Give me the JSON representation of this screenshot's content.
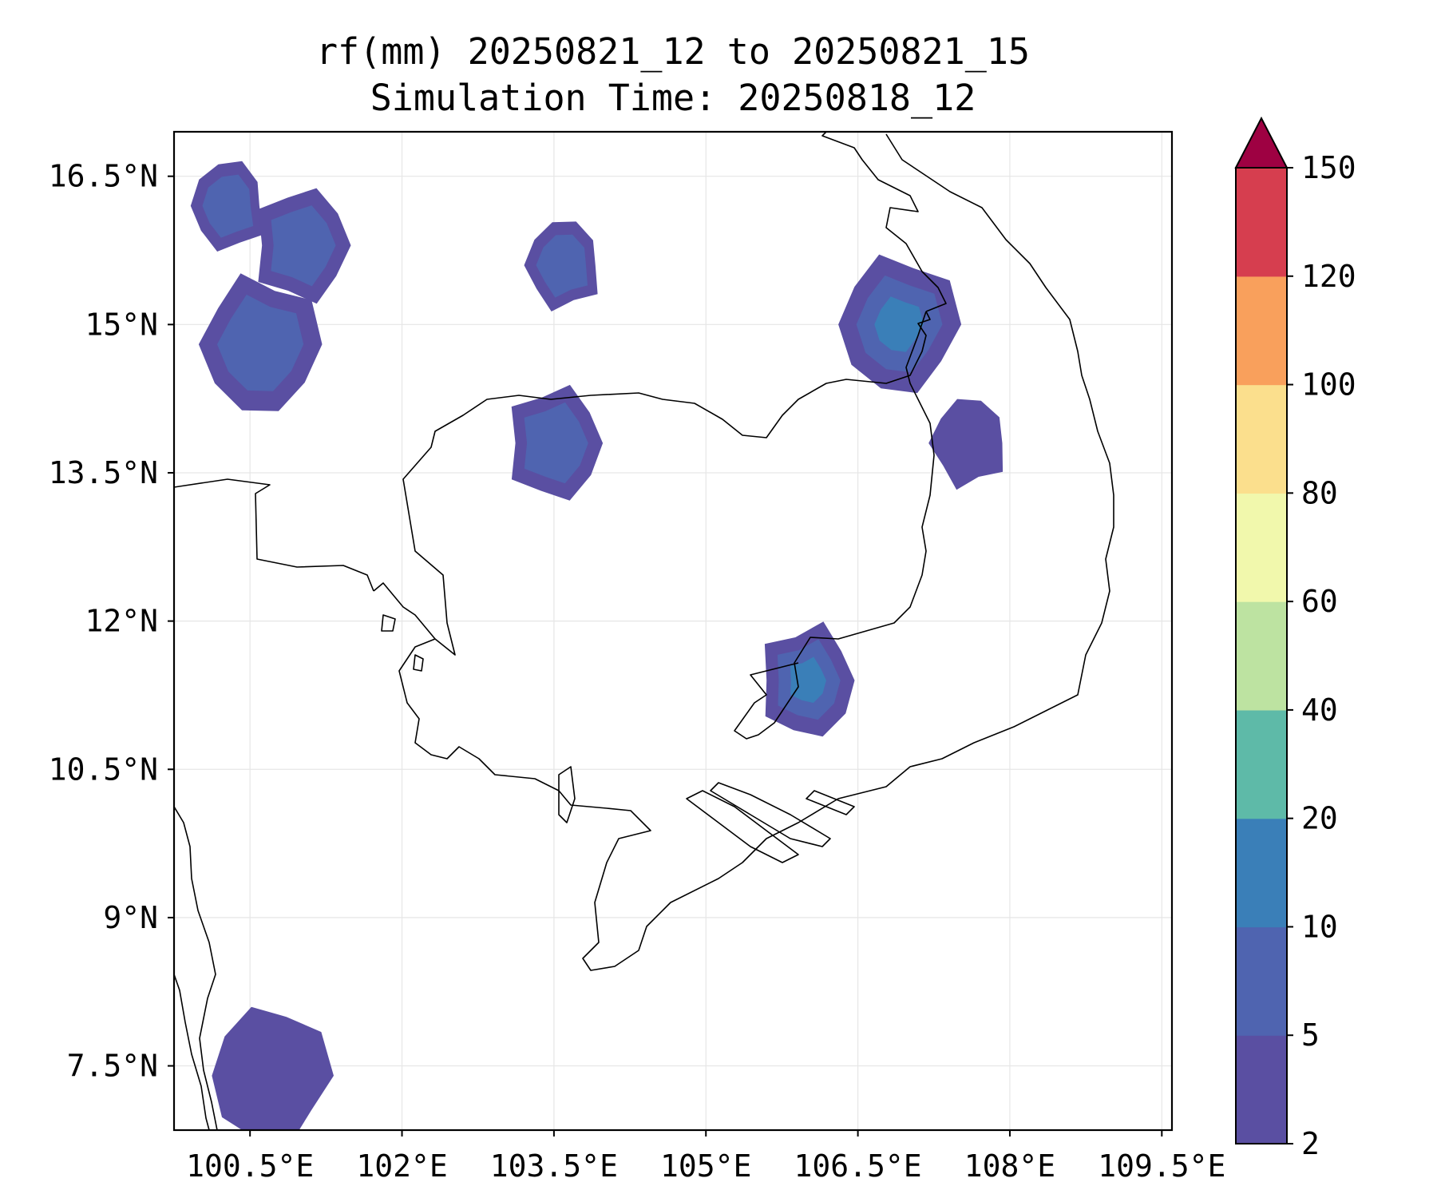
{
  "title": {
    "line1": "rf(mm) 20250821_12 to 20250821_15",
    "line2": "Simulation Time: 20250818_12"
  },
  "map": {
    "lon_range": [
      99.75,
      109.6
    ],
    "lat_range": [
      6.85,
      16.95
    ],
    "x_ticks": [
      "100.5°E",
      "102°E",
      "103.5°E",
      "105°E",
      "106.5°E",
      "108°E",
      "109.5°E"
    ],
    "x_tick_values": [
      100.5,
      102,
      103.5,
      105,
      106.5,
      108,
      109.5
    ],
    "y_ticks": [
      "16.5°N",
      "15°N",
      "13.5°N",
      "12°N",
      "10.5°N",
      "9°N",
      "7.5°N"
    ],
    "y_tick_values": [
      16.5,
      15,
      13.5,
      12,
      10.5,
      9,
      7.5
    ],
    "grid": true,
    "coastline_color": "#000000"
  },
  "colorbar": {
    "levels": [
      "2",
      "5",
      "10",
      "20",
      "40",
      "60",
      "80",
      "100",
      "120",
      "150"
    ],
    "colors": [
      "#5a4fa2",
      "#4f64b0",
      "#3a7fb8",
      "#5ebaa8",
      "#bde3a1",
      "#f1f8ac",
      "#fbdf8d",
      "#f9a05c",
      "#d63e4f",
      "#9e0142"
    ],
    "extend": "max"
  },
  "chart_data": {
    "type": "heatmap",
    "title": "rf(mm) 20250821_12 to 20250821_15",
    "subtitle": "Simulation Time: 20250818_12",
    "xlabel": "",
    "ylabel": "",
    "xlim": [
      99.75,
      109.6
    ],
    "ylim": [
      6.85,
      16.95
    ],
    "color_levels": [
      2,
      5,
      10,
      20,
      40,
      60,
      80,
      100,
      120,
      150
    ],
    "rain_areas": [
      {
        "lon": 100.3,
        "lat": 16.2,
        "max_level": 10
      },
      {
        "lon": 101.0,
        "lat": 15.8,
        "max_level": 10
      },
      {
        "lon": 100.6,
        "lat": 14.8,
        "max_level": 10
      },
      {
        "lon": 103.6,
        "lat": 15.6,
        "max_level": 10
      },
      {
        "lon": 103.5,
        "lat": 13.8,
        "max_level": 10
      },
      {
        "lon": 106.9,
        "lat": 15.0,
        "max_level": 20
      },
      {
        "lon": 107.6,
        "lat": 13.8,
        "max_level": 5
      },
      {
        "lon": 106.0,
        "lat": 11.4,
        "max_level": 20
      },
      {
        "lon": 100.7,
        "lat": 7.4,
        "max_level": 5
      }
    ]
  }
}
